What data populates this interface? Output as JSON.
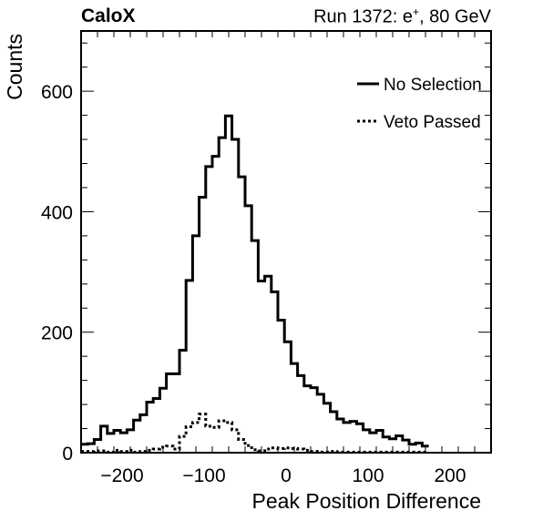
{
  "header": {
    "experiment": "CaloX",
    "run_label": "Run 1372: e",
    "run_particle_sup": "+",
    "run_energy": ", 80 GeV"
  },
  "chart_data": {
    "type": "histogram",
    "xlabel": "Peak Position Difference",
    "ylabel": "Counts",
    "xlim": [
      -250,
      250
    ],
    "ylim": [
      0,
      700
    ],
    "x_ticks": [
      -200,
      -100,
      0,
      100,
      200
    ],
    "x_tick_labels": [
      "−200",
      "−100",
      "0",
      "100",
      "200"
    ],
    "y_ticks": [
      0,
      200,
      400,
      600
    ],
    "y_tick_labels": [
      "0",
      "200",
      "400",
      "600"
    ],
    "bin_width": 8,
    "bin_edges_start": -250,
    "legend_position": "top-right",
    "series": [
      {
        "name": "No Selection",
        "style": "solid",
        "color": "#000000",
        "values": [
          14,
          15,
          22,
          44,
          32,
          37,
          33,
          38,
          54,
          63,
          84,
          90,
          107,
          131,
          131,
          170,
          286,
          360,
          424,
          475,
          492,
          523,
          559,
          520,
          458,
          410,
          352,
          285,
          293,
          267,
          220,
          184,
          148,
          128,
          111,
          108,
          97,
          82,
          68,
          56,
          50,
          52,
          48,
          38,
          33,
          37,
          26,
          23,
          28,
          21,
          14,
          16,
          11
        ]
      },
      {
        "name": "Veto Passed",
        "style": "dashed",
        "color": "#000000",
        "values": [
          2,
          2,
          3,
          3,
          1,
          4,
          2,
          4,
          1,
          2,
          4,
          6,
          9,
          11,
          6,
          27,
          43,
          50,
          64,
          44,
          42,
          53,
          50,
          38,
          22,
          12,
          5,
          3,
          6,
          8,
          7,
          8,
          7,
          6,
          4,
          2,
          1,
          1,
          2,
          1,
          1,
          1,
          1,
          1,
          1,
          1,
          1,
          1,
          1,
          1,
          1,
          1,
          1
        ]
      }
    ]
  }
}
